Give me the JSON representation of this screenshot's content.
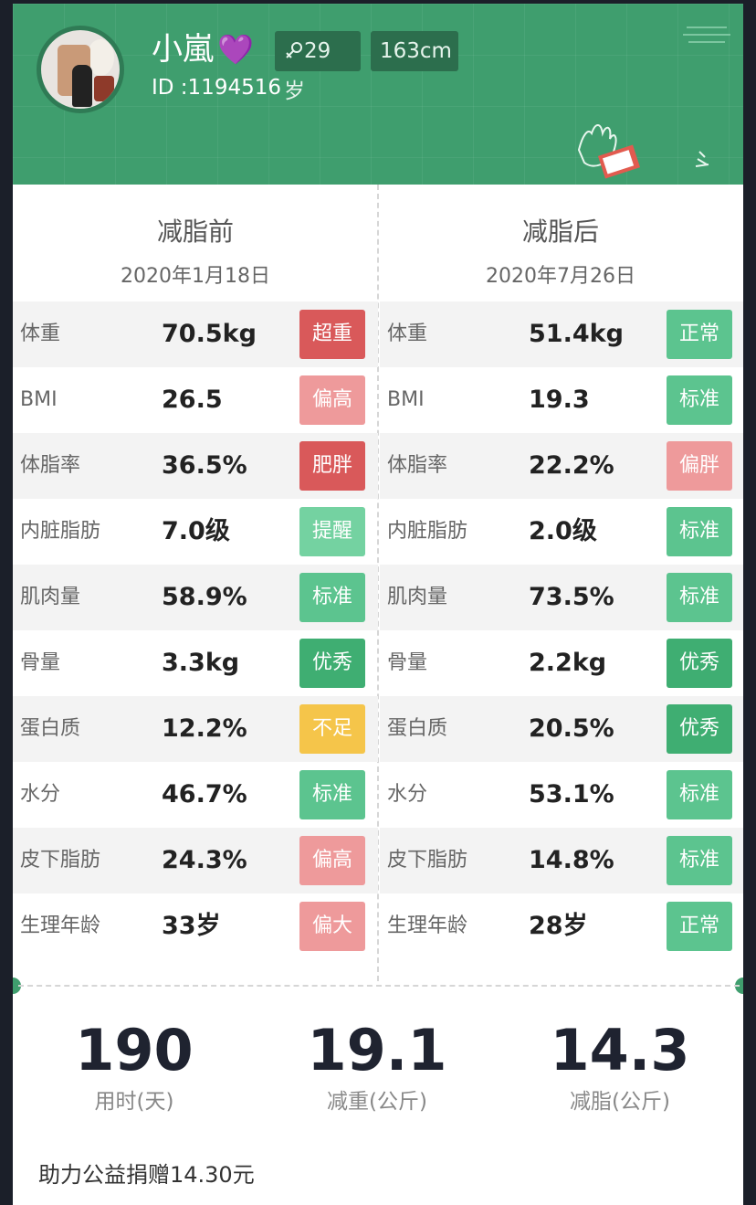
{
  "profile": {
    "name": "小嵐",
    "heart_emoji": "💜",
    "id_label": "ID :1194516",
    "age": "29岁",
    "gender_icon": "female-icon",
    "height": "163cm"
  },
  "colors": {
    "header_green": "#3f9e6e",
    "badge_red": "#d9595a",
    "badge_pink": "#ee9a9b",
    "badge_green": "#5cc48f",
    "badge_light_green": "#74d2a1",
    "badge_dark_green": "#3fae72",
    "badge_yellow": "#f5c54a"
  },
  "before": {
    "title": "减脂前",
    "date": "2020年1月18日",
    "rows": [
      {
        "label": "体重",
        "value": "70.5kg",
        "status": "超重",
        "color": "#d9595a"
      },
      {
        "label": "BMI",
        "value": "26.5",
        "status": "偏高",
        "color": "#ee9a9b"
      },
      {
        "label": "体脂率",
        "value": "36.5%",
        "status": "肥胖",
        "color": "#d9595a"
      },
      {
        "label": "内脏脂肪",
        "value": "7.0级",
        "status": "提醒",
        "color": "#74d2a1"
      },
      {
        "label": "肌肉量",
        "value": "58.9%",
        "status": "标准",
        "color": "#5cc48f"
      },
      {
        "label": "骨量",
        "value": "3.3kg",
        "status": "优秀",
        "color": "#3fae72"
      },
      {
        "label": "蛋白质",
        "value": "12.2%",
        "status": "不足",
        "color": "#f5c54a"
      },
      {
        "label": "水分",
        "value": "46.7%",
        "status": "标准",
        "color": "#5cc48f"
      },
      {
        "label": "皮下脂肪",
        "value": "24.3%",
        "status": "偏高",
        "color": "#ee9a9b"
      },
      {
        "label": "生理年龄",
        "value": "33岁",
        "status": "偏大",
        "color": "#ee9a9b"
      }
    ]
  },
  "after": {
    "title": "减脂后",
    "date": "2020年7月26日",
    "rows": [
      {
        "label": "体重",
        "value": "51.4kg",
        "status": "正常",
        "color": "#5cc48f"
      },
      {
        "label": "BMI",
        "value": "19.3",
        "status": "标准",
        "color": "#5cc48f"
      },
      {
        "label": "体脂率",
        "value": "22.2%",
        "status": "偏胖",
        "color": "#ee9a9b"
      },
      {
        "label": "内脏脂肪",
        "value": "2.0级",
        "status": "标准",
        "color": "#5cc48f"
      },
      {
        "label": "肌肉量",
        "value": "73.5%",
        "status": "标准",
        "color": "#5cc48f"
      },
      {
        "label": "骨量",
        "value": "2.2kg",
        "status": "优秀",
        "color": "#3fae72"
      },
      {
        "label": "蛋白质",
        "value": "20.5%",
        "status": "优秀",
        "color": "#3fae72"
      },
      {
        "label": "水分",
        "value": "53.1%",
        "status": "标准",
        "color": "#5cc48f"
      },
      {
        "label": "皮下脂肪",
        "value": "14.8%",
        "status": "标准",
        "color": "#5cc48f"
      },
      {
        "label": "生理年龄",
        "value": "28岁",
        "status": "正常",
        "color": "#5cc48f"
      }
    ]
  },
  "summary": [
    {
      "value": "190",
      "label": "用时(天)"
    },
    {
      "value": "19.1",
      "label": "减重(公斤)"
    },
    {
      "value": "14.3",
      "label": "减脂(公斤)"
    }
  ],
  "footer_text": "助力公益捐赠14.30元"
}
